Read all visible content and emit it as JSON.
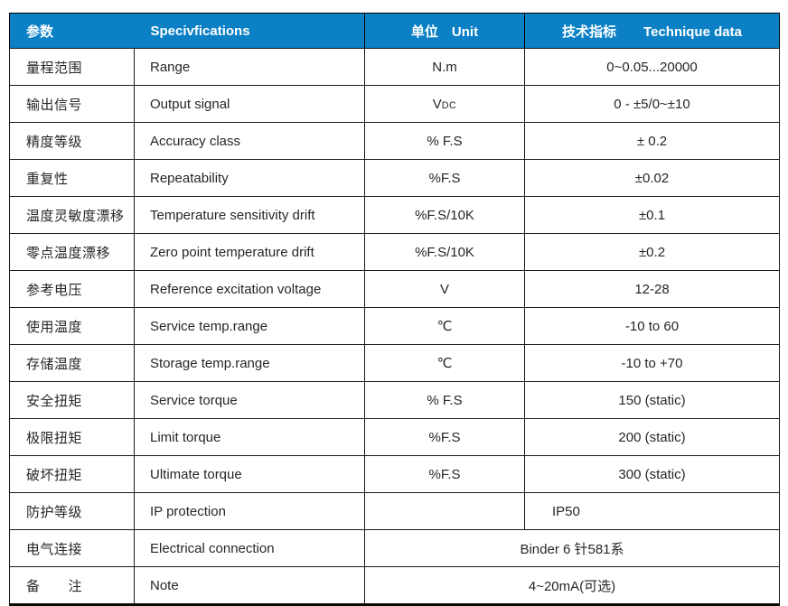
{
  "table": {
    "header": {
      "param": "参数",
      "spec": "Specivfications",
      "unit": "单位　Unit",
      "data": "技术指标　　Technique data"
    },
    "rows": [
      {
        "cn": "量程范围",
        "en": "Range",
        "unit": "N.m",
        "value": "0~0.05...20000"
      },
      {
        "cn": "输出信号",
        "en": "Output signal",
        "unit": "V",
        "unit_sub": "DC",
        "value": "0 - ±5/0~±10"
      },
      {
        "cn": "精度等级",
        "en": "Accuracy class",
        "unit": "% F.S",
        "value": "± 0.2"
      },
      {
        "cn": "重复性",
        "en": "Repeatability",
        "unit": "%F.S",
        "value": "±0.02"
      },
      {
        "cn": "温度灵敏度漂移",
        "en": "Temperature sensitivity drift",
        "unit": "%F.S/10K",
        "value": "±0.1"
      },
      {
        "cn": "零点温度漂移",
        "en": "Zero point temperature drift",
        "unit": "%F.S/10K",
        "value": "±0.2"
      },
      {
        "cn": "参考电压",
        "en": "Reference excitation voltage",
        "unit": "V",
        "value": "12-28"
      },
      {
        "cn": "使用温度",
        "en": "Service temp.range",
        "unit": "℃",
        "value": "-10 to 60"
      },
      {
        "cn": "存储温度",
        "en": "Storage temp.range",
        "unit": "℃",
        "value": "-10 to +70"
      },
      {
        "cn": "安全扭矩",
        "en": "Service torque",
        "unit": "% F.S",
        "value": "150 (static)"
      },
      {
        "cn": "极限扭矩",
        "en": "Limit torque",
        "unit": "%F.S",
        "value": "200 (static)"
      },
      {
        "cn": "破坏扭矩",
        "en": "Ultimate torque",
        "unit": "%F.S",
        "value": "300 (static)"
      },
      {
        "cn": "防护等级",
        "en": "IP protection",
        "unit": "",
        "value": "IP50"
      },
      {
        "cn": "电气连接",
        "en": "Electrical connection",
        "merged_value": "Binder 6 针581系"
      },
      {
        "cn": "备　　注",
        "en": "Note",
        "merged_value": "4~20mA(可选)"
      }
    ],
    "colors": {
      "header_bg": "#0b80c5",
      "header_text": "#ffffff",
      "border": "#1a1a1a",
      "text": "#262626"
    }
  }
}
